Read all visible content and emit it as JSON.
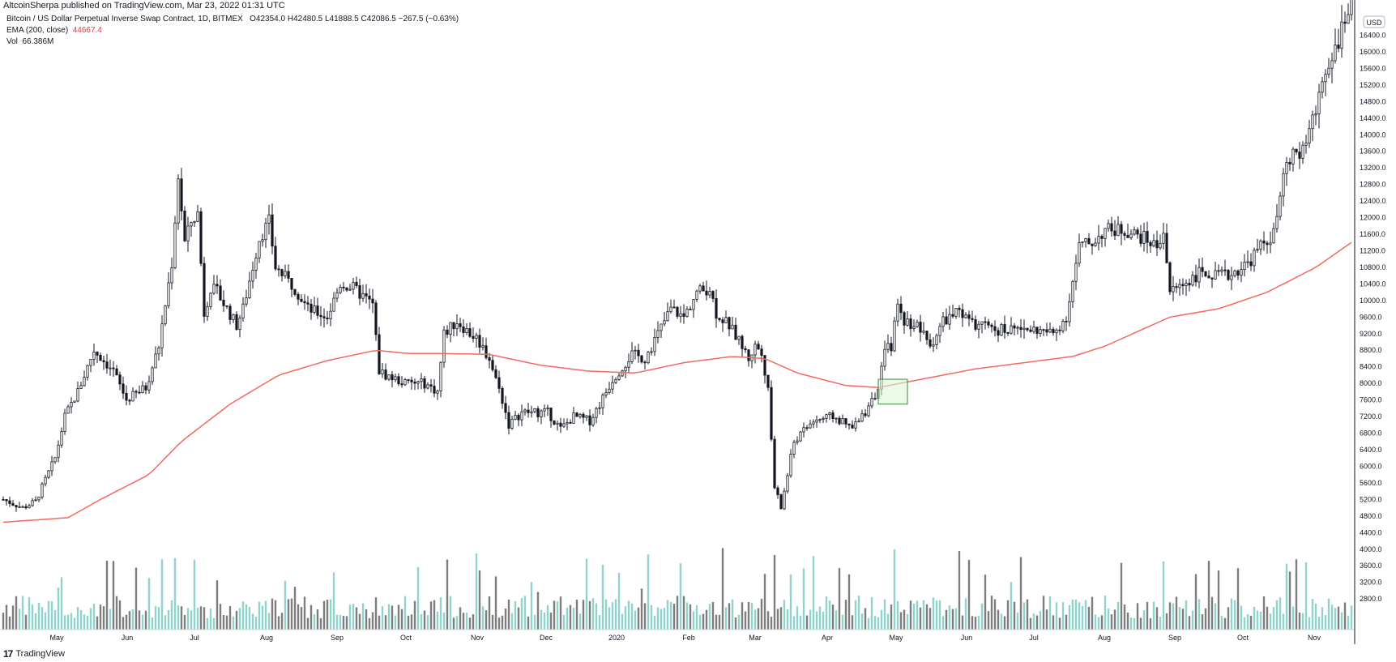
{
  "header": {
    "published": "AltcoinSherpa published on TradingView.com, Mar 23, 2022 01:31 UTC"
  },
  "legend": {
    "symbol": "Bitcoin / US Dollar Perpetual Inverse Swap Contract, 1D, BITMEX",
    "ohlc": "O42354.0  H42480.5  L41888.5  C42086.5  −267.5 (−0.63%)",
    "ema_label": "EMA (200, close)",
    "ema_value": "44667.4",
    "vol_label": "Vol",
    "vol_value": "66.386M"
  },
  "footer": {
    "brand": "TradingView",
    "logo": "17"
  },
  "colors": {
    "ema": "#f2695f",
    "candle": "#131722",
    "vol_up": "#8fd3cc",
    "vol_down": "#7d7d7d",
    "highlight_fill": "#d9f5cf",
    "highlight_stroke": "#3c8a3c",
    "axis": "#131722"
  },
  "chart_data": {
    "type": "candlestick",
    "currency": "USD",
    "y_ticks": [
      2800,
      3200,
      3600,
      4000,
      4400,
      4800,
      5200,
      5600,
      6000,
      6400,
      6800,
      7200,
      7600,
      8000,
      8400,
      8800,
      9200,
      9600,
      10000,
      10400,
      10800,
      11200,
      11600,
      12000,
      12400,
      12800,
      13200,
      13600,
      14000,
      14400,
      14800,
      15200,
      15600,
      16000,
      16400
    ],
    "x_ticks": [
      "May",
      "Jun",
      "Jul",
      "Aug",
      "Sep",
      "Oct",
      "Nov",
      "Dec",
      "2020",
      "Feb",
      "Mar",
      "Apr",
      "May",
      "Jun",
      "Jul",
      "Aug",
      "Sep",
      "Oct",
      "Nov"
    ],
    "price_path": [
      [
        0,
        5200
      ],
      [
        6,
        5000
      ],
      [
        10,
        5150
      ],
      [
        16,
        6200
      ],
      [
        19,
        7200
      ],
      [
        23,
        7800
      ],
      [
        28,
        8800
      ],
      [
        34,
        8300
      ],
      [
        38,
        7600
      ],
      [
        44,
        7900
      ],
      [
        48,
        8900
      ],
      [
        52,
        10900
      ],
      [
        54,
        13000
      ],
      [
        56,
        11400
      ],
      [
        58,
        11900
      ],
      [
        60,
        12100
      ],
      [
        62,
        9700
      ],
      [
        64,
        10300
      ],
      [
        66,
        10200
      ],
      [
        72,
        9400
      ],
      [
        74,
        9800
      ],
      [
        79,
        11500
      ],
      [
        82,
        11900
      ],
      [
        84,
        10800
      ],
      [
        90,
        10300
      ],
      [
        94,
        9800
      ],
      [
        100,
        9600
      ],
      [
        104,
        10400
      ],
      [
        108,
        10300
      ],
      [
        114,
        9900
      ],
      [
        116,
        8300
      ],
      [
        118,
        8200
      ],
      [
        124,
        8000
      ],
      [
        130,
        8000
      ],
      [
        134,
        7800
      ],
      [
        136,
        9200
      ],
      [
        140,
        9500
      ],
      [
        144,
        9200
      ],
      [
        146,
        9100
      ],
      [
        150,
        8600
      ],
      [
        154,
        7600
      ],
      [
        156,
        7000
      ],
      [
        160,
        7300
      ],
      [
        168,
        7300
      ],
      [
        172,
        6900
      ],
      [
        176,
        7200
      ],
      [
        181,
        7100
      ],
      [
        184,
        7500
      ],
      [
        188,
        8100
      ],
      [
        194,
        8700
      ],
      [
        198,
        8600
      ],
      [
        202,
        9200
      ],
      [
        206,
        9800
      ],
      [
        210,
        9600
      ],
      [
        214,
        10200
      ],
      [
        218,
        10300
      ],
      [
        220,
        9700
      ],
      [
        224,
        9400
      ],
      [
        228,
        8900
      ],
      [
        230,
        8600
      ],
      [
        232,
        8900
      ],
      [
        234,
        8800
      ],
      [
        236,
        7800
      ],
      [
        238,
        5500
      ],
      [
        240,
        5000
      ],
      [
        244,
        6600
      ],
      [
        250,
        7100
      ],
      [
        256,
        7200
      ],
      [
        262,
        6900
      ],
      [
        266,
        7300
      ],
      [
        268,
        7700
      ],
      [
        270,
        7800
      ],
      [
        272,
        8800
      ],
      [
        274,
        8900
      ],
      [
        276,
        9900
      ],
      [
        278,
        9500
      ],
      [
        282,
        9400
      ],
      [
        286,
        8900
      ],
      [
        290,
        9500
      ],
      [
        294,
        9700
      ],
      [
        300,
        9400
      ],
      [
        306,
        9300
      ],
      [
        312,
        9300
      ],
      [
        318,
        9300
      ],
      [
        324,
        9200
      ],
      [
        328,
        9600
      ],
      [
        332,
        11300
      ],
      [
        336,
        11400
      ],
      [
        340,
        11700
      ],
      [
        346,
        11700
      ],
      [
        352,
        11500
      ],
      [
        356,
        11300
      ],
      [
        358,
        11700
      ],
      [
        360,
        10200
      ],
      [
        364,
        10400
      ],
      [
        370,
        10700
      ],
      [
        374,
        10600
      ],
      [
        378,
        10600
      ],
      [
        384,
        10900
      ],
      [
        388,
        11300
      ],
      [
        392,
        11600
      ],
      [
        396,
        13300
      ],
      [
        400,
        13600
      ],
      [
        404,
        14300
      ],
      [
        408,
        15600
      ],
      [
        412,
        16300
      ],
      [
        416,
        17100
      ]
    ],
    "ema_path": [
      [
        0,
        4650
      ],
      [
        20,
        4760
      ],
      [
        30,
        5200
      ],
      [
        45,
        5800
      ],
      [
        55,
        6600
      ],
      [
        70,
        7500
      ],
      [
        85,
        8200
      ],
      [
        100,
        8550
      ],
      [
        115,
        8800
      ],
      [
        125,
        8720
      ],
      [
        135,
        8720
      ],
      [
        150,
        8700
      ],
      [
        165,
        8450
      ],
      [
        180,
        8300
      ],
      [
        195,
        8250
      ],
      [
        210,
        8500
      ],
      [
        225,
        8650
      ],
      [
        235,
        8600
      ],
      [
        245,
        8250
      ],
      [
        260,
        7950
      ],
      [
        270,
        7900
      ],
      [
        280,
        8050
      ],
      [
        300,
        8350
      ],
      [
        320,
        8550
      ],
      [
        330,
        8650
      ],
      [
        340,
        8900
      ],
      [
        350,
        9250
      ],
      [
        360,
        9600
      ],
      [
        375,
        9800
      ],
      [
        390,
        10200
      ],
      [
        405,
        10800
      ],
      [
        416,
        11400
      ]
    ],
    "highlight_box": {
      "x_from": 270,
      "x_to": 279,
      "y_from": 7500,
      "y_to": 8100
    }
  }
}
